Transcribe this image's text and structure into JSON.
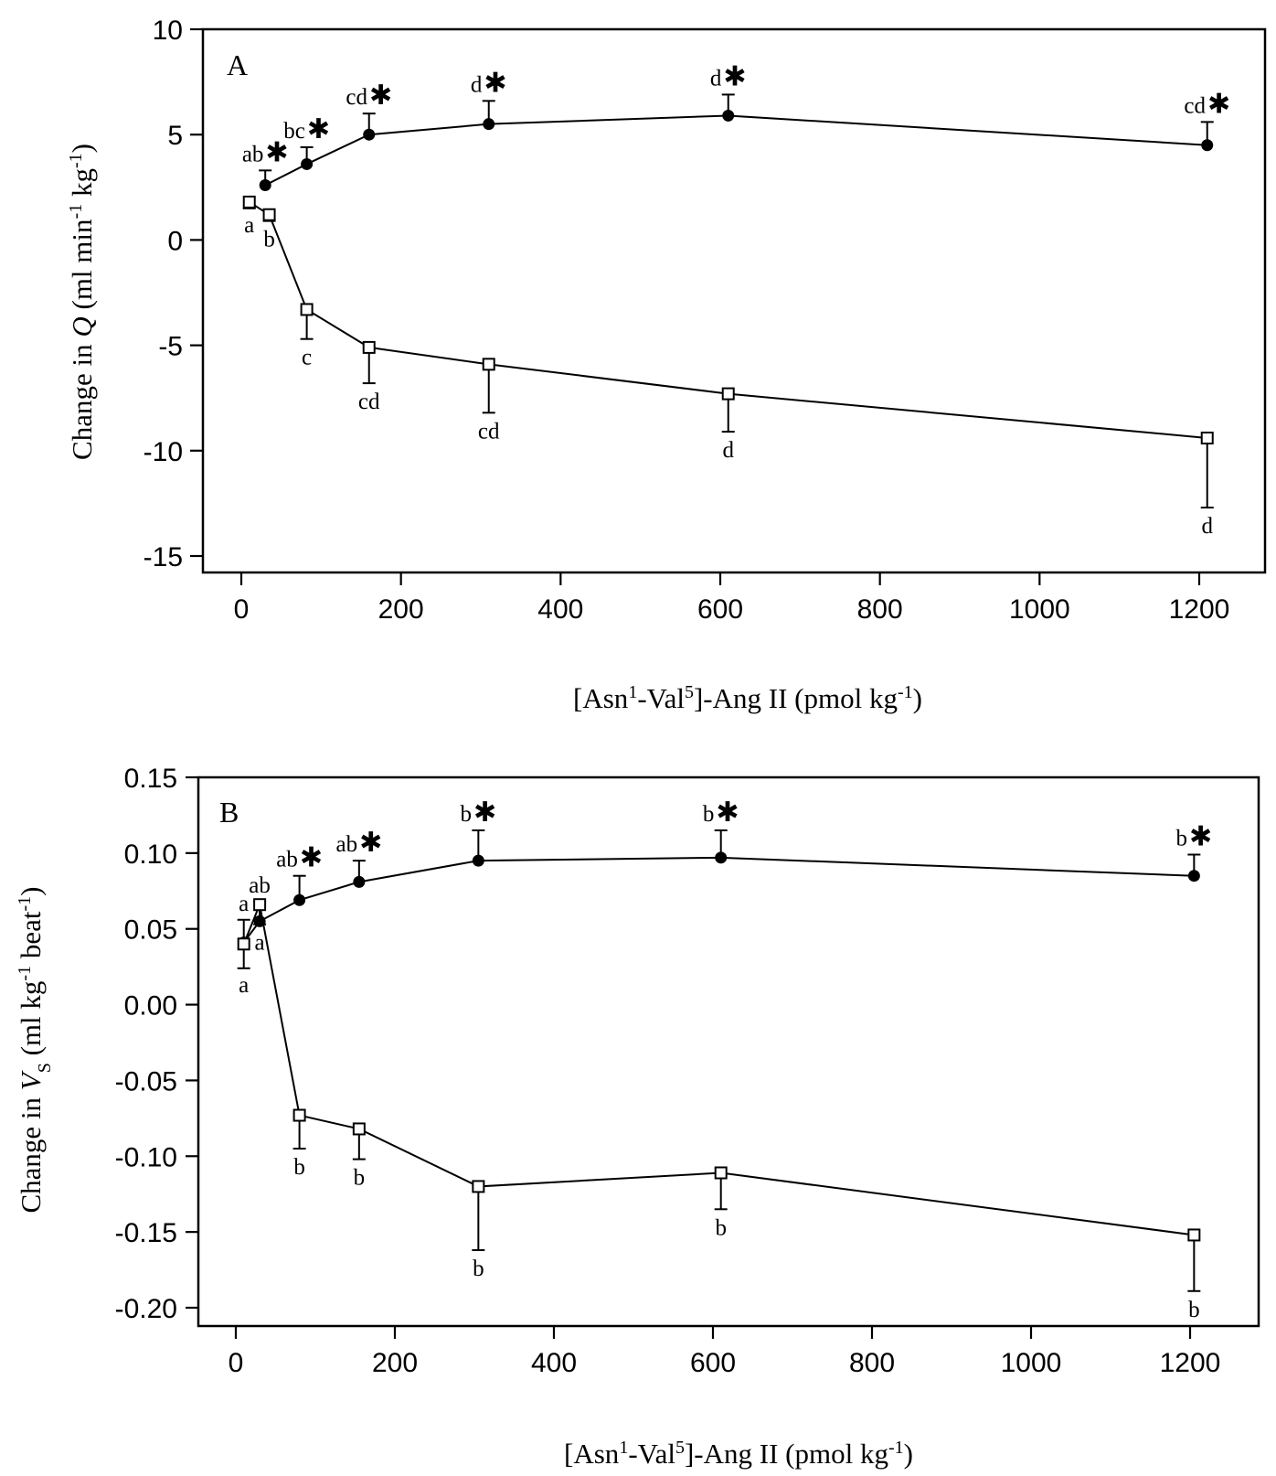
{
  "chart_data": [
    {
      "type": "line",
      "panel": "A",
      "xlabel": {
        "pre": "[Asn",
        "s1": "1",
        "mid": "-Val",
        "s2": "5",
        "post": "]-Ang II (pmol kg",
        "s3": "-1",
        "end": ")"
      },
      "ylabel": {
        "pre": "Change in ",
        "var": "Q",
        "post": " (ml min",
        "s1": "-1",
        "mid": " kg",
        "s2": "-1",
        "end": ")"
      },
      "xlim": [
        -50,
        1250
      ],
      "ylim": [
        -15,
        10
      ],
      "xticks": [
        "0",
        "200",
        "400",
        "600",
        "800",
        "1000",
        "1200"
      ],
      "yticks": [
        "10",
        "5",
        "0",
        "-5",
        "-10",
        "-15"
      ],
      "series": [
        {
          "marker": "filled-circle",
          "points": [
            {
              "x": 30,
              "y": 2.6,
              "err": 0.7,
              "label": "ab",
              "star": true
            },
            {
              "x": 82,
              "y": 3.6,
              "err": 0.8,
              "label": "bc",
              "star": true
            },
            {
              "x": 160,
              "y": 5.0,
              "err": 1.0,
              "label": "cd",
              "star": true
            },
            {
              "x": 310,
              "y": 5.5,
              "err": 1.1,
              "label": "d",
              "star": true
            },
            {
              "x": 610,
              "y": 5.9,
              "err": 1.0,
              "label": "d",
              "star": true
            },
            {
              "x": 1210,
              "y": 4.5,
              "err": 1.1,
              "label": "cd",
              "star": true
            }
          ]
        },
        {
          "marker": "open-square",
          "points": [
            {
              "x": 10,
              "y": 1.8,
              "err": 0.3,
              "label": "a",
              "star": false
            },
            {
              "x": 35,
              "y": 1.2,
              "err": 0.3,
              "label": "b",
              "star": false
            },
            {
              "x": 82,
              "y": -3.3,
              "err": 1.4,
              "label": "c",
              "star": false
            },
            {
              "x": 160,
              "y": -5.1,
              "err": 1.7,
              "label": "cd",
              "star": false
            },
            {
              "x": 310,
              "y": -5.9,
              "err": 2.3,
              "label": "cd",
              "star": false
            },
            {
              "x": 610,
              "y": -7.3,
              "err": 1.8,
              "label": "d",
              "star": false
            },
            {
              "x": 1210,
              "y": -9.4,
              "err": 3.3,
              "label": "d",
              "star": false
            }
          ]
        }
      ]
    },
    {
      "type": "line",
      "panel": "B",
      "xlabel": {
        "pre": "[Asn",
        "s1": "1",
        "mid": "-Val",
        "s2": "5",
        "post": "]-Ang II (pmol kg",
        "s3": "-1",
        "end": ")"
      },
      "ylabel": {
        "pre": "Change in ",
        "var": "V",
        "sub": "S",
        "post": " (ml kg",
        "s1": "-1",
        "mid": " beat",
        "s2": "-1",
        "end": ")"
      },
      "xlim": [
        -50,
        1250
      ],
      "ylim": [
        -0.2,
        0.15
      ],
      "xticks": [
        "0",
        "200",
        "400",
        "600",
        "800",
        "1000",
        "1200"
      ],
      "yticks": [
        "0.15",
        "0.10",
        "0.05",
        "0.00",
        "-0.05",
        "-0.10",
        "-0.15",
        "-0.20"
      ],
      "series": [
        {
          "marker": "filled-circle",
          "points": [
            {
              "x": 10,
              "y": 0.041,
              "err": 0.015,
              "label": "a",
              "star": false
            },
            {
              "x": 30,
              "y": 0.055,
              "err": 0.013,
              "label": "ab",
              "star": false
            },
            {
              "x": 80,
              "y": 0.069,
              "err": 0.016,
              "label": "ab",
              "star": true
            },
            {
              "x": 155,
              "y": 0.081,
              "err": 0.014,
              "label": "ab",
              "star": true
            },
            {
              "x": 305,
              "y": 0.095,
              "err": 0.02,
              "label": "b",
              "star": true
            },
            {
              "x": 610,
              "y": 0.097,
              "err": 0.018,
              "label": "b",
              "star": true
            },
            {
              "x": 1205,
              "y": 0.085,
              "err": 0.014,
              "label": "b",
              "star": true
            }
          ]
        },
        {
          "marker": "open-square",
          "points": [
            {
              "x": 10,
              "y": 0.04,
              "err": 0.016,
              "label": "a",
              "star": false
            },
            {
              "x": 30,
              "y": 0.066,
              "err": 0.013,
              "label": "a",
              "star": false
            },
            {
              "x": 80,
              "y": -0.073,
              "err": 0.022,
              "label": "b",
              "star": false
            },
            {
              "x": 155,
              "y": -0.082,
              "err": 0.02,
              "label": "b",
              "star": false
            },
            {
              "x": 305,
              "y": -0.12,
              "err": 0.042,
              "label": "b",
              "star": false
            },
            {
              "x": 610,
              "y": -0.111,
              "err": 0.024,
              "label": "b",
              "star": false
            },
            {
              "x": 1205,
              "y": -0.152,
              "err": 0.037,
              "label": "b",
              "star": false
            }
          ]
        }
      ]
    }
  ]
}
